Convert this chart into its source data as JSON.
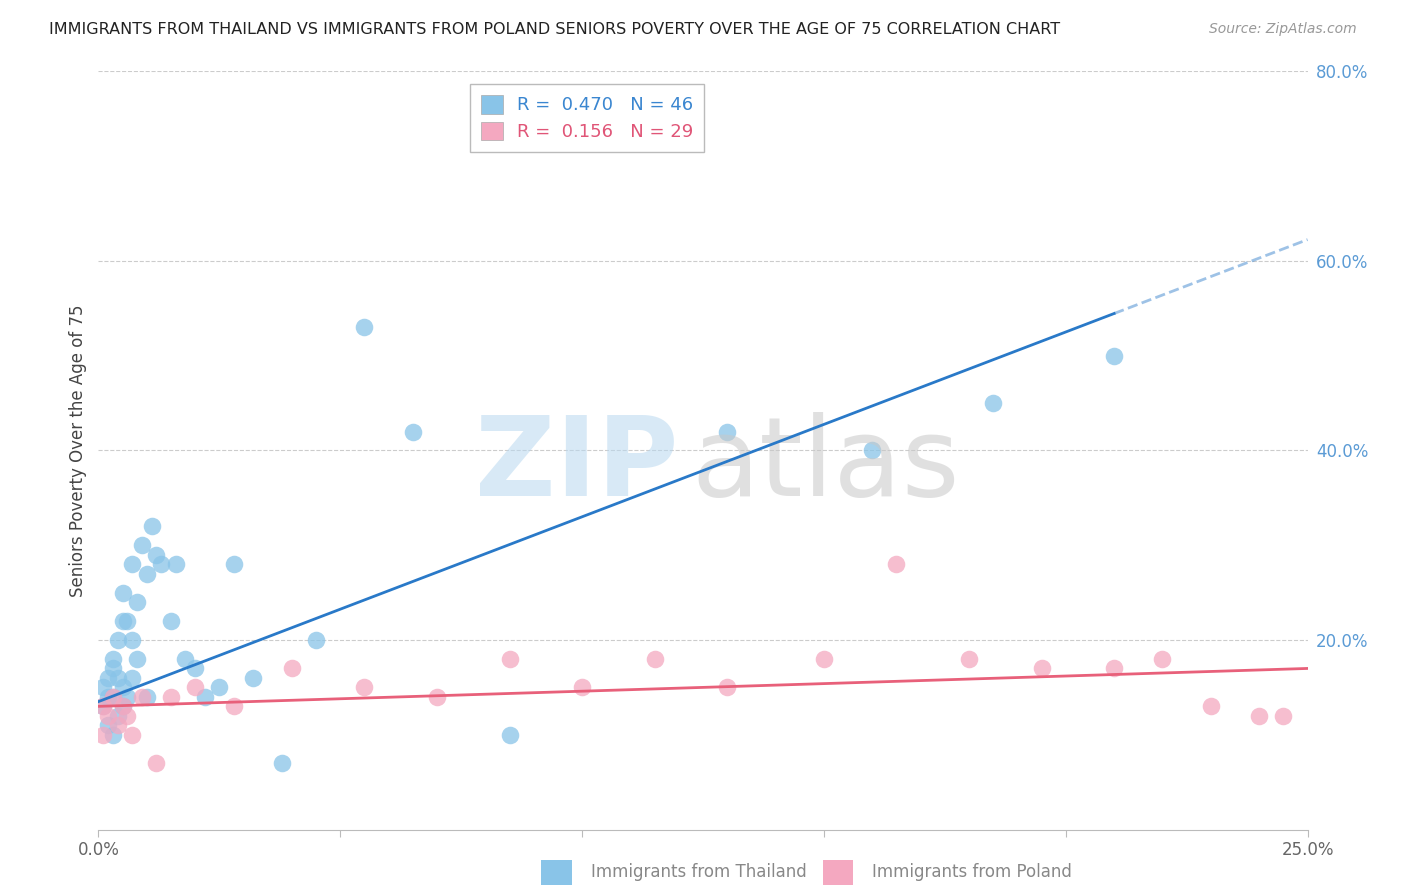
{
  "title": "IMMIGRANTS FROM THAILAND VS IMMIGRANTS FROM POLAND SENIORS POVERTY OVER THE AGE OF 75 CORRELATION CHART",
  "source": "Source: ZipAtlas.com",
  "ylabel": "Seniors Poverty Over the Age of 75",
  "xlim": [
    0.0,
    0.25
  ],
  "ylim": [
    0.0,
    0.8
  ],
  "yticks": [
    0.0,
    0.2,
    0.4,
    0.6,
    0.8
  ],
  "ytick_labels": [
    "",
    "20.0%",
    "40.0%",
    "60.0%",
    "80.0%"
  ],
  "xticks": [
    0.0,
    0.05,
    0.1,
    0.15,
    0.2,
    0.25
  ],
  "xtick_labels": [
    "0.0%",
    "",
    "",
    "",
    "",
    "25.0%"
  ],
  "legend_thailand": "R =  0.470   N = 46",
  "legend_poland": "R =  0.156   N = 29",
  "color_thailand": "#89c4e8",
  "color_poland": "#f4a8c0",
  "color_line_thailand": "#2979c8",
  "color_line_poland": "#e8607a",
  "thailand_x": [
    0.001,
    0.001,
    0.002,
    0.002,
    0.002,
    0.003,
    0.003,
    0.003,
    0.003,
    0.004,
    0.004,
    0.004,
    0.005,
    0.005,
    0.005,
    0.005,
    0.006,
    0.006,
    0.007,
    0.007,
    0.007,
    0.008,
    0.008,
    0.009,
    0.01,
    0.01,
    0.011,
    0.012,
    0.013,
    0.015,
    0.016,
    0.018,
    0.02,
    0.022,
    0.025,
    0.028,
    0.032,
    0.038,
    0.045,
    0.055,
    0.065,
    0.085,
    0.13,
    0.16,
    0.185,
    0.21
  ],
  "thailand_y": [
    0.13,
    0.15,
    0.11,
    0.14,
    0.16,
    0.1,
    0.14,
    0.17,
    0.18,
    0.12,
    0.16,
    0.2,
    0.13,
    0.15,
    0.22,
    0.25,
    0.14,
    0.22,
    0.16,
    0.2,
    0.28,
    0.18,
    0.24,
    0.3,
    0.14,
    0.27,
    0.32,
    0.29,
    0.28,
    0.22,
    0.28,
    0.18,
    0.17,
    0.14,
    0.15,
    0.28,
    0.16,
    0.07,
    0.2,
    0.53,
    0.42,
    0.1,
    0.42,
    0.4,
    0.45,
    0.5
  ],
  "poland_x": [
    0.001,
    0.001,
    0.002,
    0.003,
    0.004,
    0.005,
    0.006,
    0.007,
    0.009,
    0.012,
    0.015,
    0.02,
    0.028,
    0.04,
    0.055,
    0.07,
    0.085,
    0.1,
    0.115,
    0.13,
    0.15,
    0.165,
    0.18,
    0.195,
    0.21,
    0.22,
    0.23,
    0.24,
    0.245
  ],
  "poland_y": [
    0.1,
    0.13,
    0.12,
    0.14,
    0.11,
    0.13,
    0.12,
    0.1,
    0.14,
    0.07,
    0.14,
    0.15,
    0.13,
    0.17,
    0.15,
    0.14,
    0.18,
    0.15,
    0.18,
    0.15,
    0.18,
    0.28,
    0.18,
    0.17,
    0.17,
    0.18,
    0.13,
    0.12,
    0.12
  ]
}
